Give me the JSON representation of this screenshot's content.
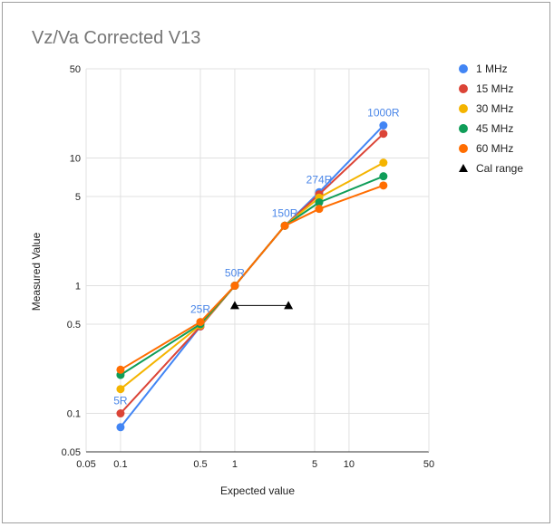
{
  "chart_data": {
    "type": "line",
    "title": "Vz/Va Corrected V13",
    "xlabel": "Expected value",
    "ylabel": "Measured Value",
    "x_scale": "log",
    "y_scale": "log",
    "xlim": [
      0.05,
      50
    ],
    "ylim": [
      0.05,
      50
    ],
    "x_ticks": [
      {
        "value": 0.05,
        "label": "0.05"
      },
      {
        "value": 0.1,
        "label": "0.1"
      },
      {
        "value": 0.5,
        "label": "0.5"
      },
      {
        "value": 1,
        "label": "1"
      },
      {
        "value": 5,
        "label": "5"
      },
      {
        "value": 10,
        "label": "10"
      },
      {
        "value": 50,
        "label": "50"
      }
    ],
    "y_ticks": [
      {
        "value": 0.05,
        "label": "0.05"
      },
      {
        "value": 0.1,
        "label": "0.1"
      },
      {
        "value": 0.5,
        "label": "0.5"
      },
      {
        "value": 1,
        "label": "1"
      },
      {
        "value": 5,
        "label": "5"
      },
      {
        "value": 10,
        "label": "10"
      },
      {
        "value": 50,
        "label": "50"
      }
    ],
    "grid": true,
    "legend_position": "right",
    "x": [
      0.1,
      0.5,
      1,
      2.74,
      5.48,
      20
    ],
    "series": [
      {
        "name": "1 MHz",
        "color": "#4285f4",
        "values": [
          0.078,
          0.48,
          1.0,
          2.95,
          5.4,
          18.0
        ]
      },
      {
        "name": "15 MHz",
        "color": "#db4437",
        "values": [
          0.1,
          0.48,
          1.0,
          2.95,
          5.2,
          15.5
        ]
      },
      {
        "name": "30 MHz",
        "color": "#f4b400",
        "values": [
          0.155,
          0.49,
          1.0,
          2.95,
          4.9,
          9.2
        ]
      },
      {
        "name": "45 MHz",
        "color": "#0f9d58",
        "values": [
          0.2,
          0.5,
          1.0,
          2.95,
          4.5,
          7.2
        ]
      },
      {
        "name": "60 MHz",
        "color": "#ff6d01",
        "values": [
          0.22,
          0.52,
          1.0,
          2.95,
          4.0,
          6.1
        ]
      }
    ],
    "cal_range": {
      "name": "Cal range",
      "color": "#000000",
      "x": [
        1,
        2.95
      ],
      "y": 0.7
    },
    "annotations": [
      {
        "text": "5R",
        "x": 0.1,
        "y": 0.1
      },
      {
        "text": "25R",
        "x": 0.5,
        "y": 0.52
      },
      {
        "text": "50R",
        "x": 1,
        "y": 1.0
      },
      {
        "text": "150R",
        "x": 2.74,
        "y": 2.95
      },
      {
        "text": "274R",
        "x": 5.48,
        "y": 5.4
      },
      {
        "text": "1000R",
        "x": 20,
        "y": 18.0
      }
    ]
  }
}
